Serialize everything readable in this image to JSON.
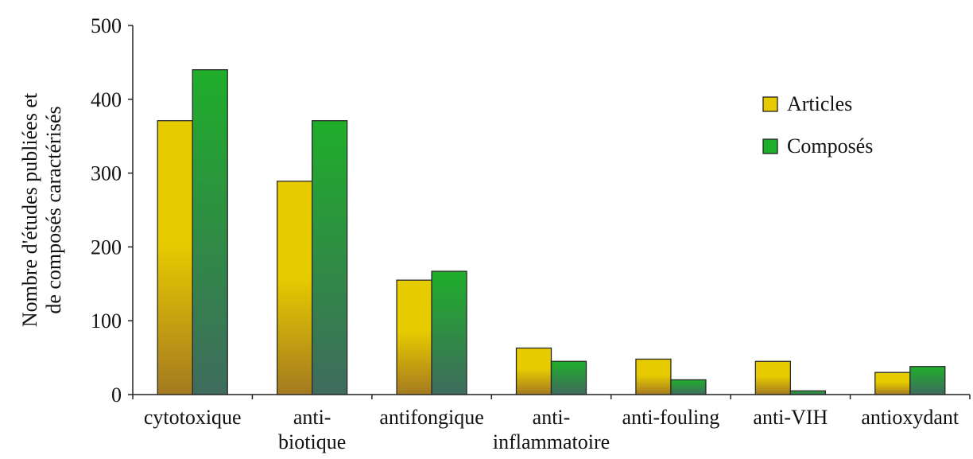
{
  "chart_data": {
    "type": "bar",
    "title": "",
    "xlabel": "",
    "ylabel": [
      "Nombre d'études publiées et",
      "de composés caractérisés"
    ],
    "ylim": [
      0,
      500
    ],
    "yticks": [
      0,
      100,
      200,
      300,
      400,
      500
    ],
    "categories": [
      [
        "cytotoxique"
      ],
      [
        "anti-",
        "biotique"
      ],
      [
        "antifongique"
      ],
      [
        "anti-",
        "inflammatoire"
      ],
      [
        "anti-fouling"
      ],
      [
        "anti-VIH"
      ],
      [
        "antioxydant"
      ]
    ],
    "series": [
      {
        "name": "Articles",
        "values": [
          371,
          289,
          155,
          63,
          48,
          45,
          30
        ]
      },
      {
        "name": "Composés",
        "values": [
          440,
          371,
          167,
          45,
          20,
          5,
          38
        ]
      }
    ],
    "grid": false,
    "legend_position": "top-right",
    "colors": {
      "articles_top": "#e6cb00",
      "articles_bottom": "#a47a20",
      "composes_top": "#1fae2a",
      "composes_bottom": "#3f6b5e"
    }
  }
}
